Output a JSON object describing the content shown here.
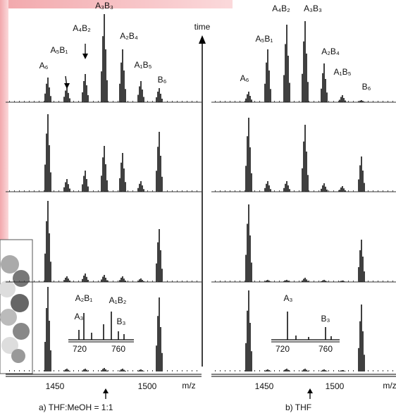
{
  "figure": {
    "time_label": "time",
    "left": {
      "peak_labels": [
        "A₆",
        "A₅B₁",
        "A₄B₂",
        "A₃B₃",
        "A₂B₄",
        "A₁B₅",
        "B₆"
      ],
      "inset": {
        "labels": [
          "A₂B₁",
          "A₁B₂",
          "A₃",
          "B₃"
        ],
        "ticks": [
          "720",
          "760"
        ]
      },
      "axis": {
        "ticks": [
          "1450",
          "1500"
        ],
        "unit": "m/z"
      },
      "caption": "a) THF:MeOH = 1:1"
    },
    "right": {
      "peak_labels": [
        "A₆",
        "A₅B₁",
        "A₄B₂",
        "A₃B₃",
        "A₂B₄",
        "A₁B₅",
        "B₆"
      ],
      "inset": {
        "labels": [
          "A₃",
          "B₃"
        ],
        "ticks": [
          "720",
          "760"
        ]
      },
      "axis": {
        "ticks": [
          "1450",
          "1500"
        ],
        "unit": "m/z"
      },
      "caption": "b) THF"
    }
  }
}
